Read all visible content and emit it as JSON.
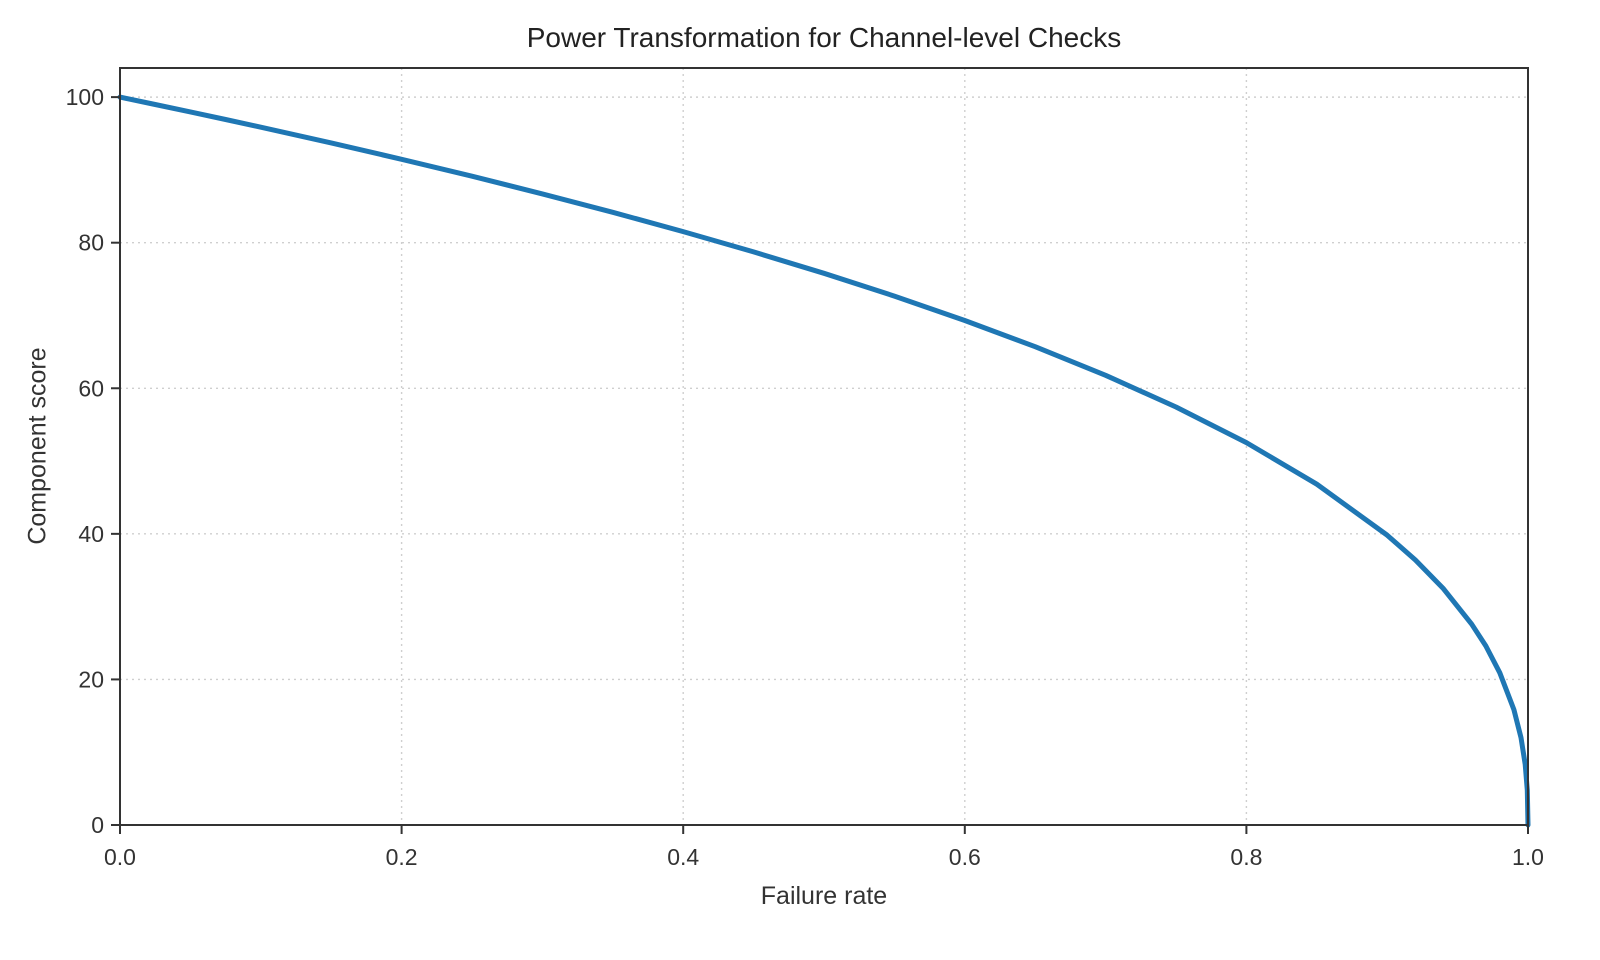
{
  "chart_data": {
    "type": "line",
    "title": "Power Transformation for Channel-level Checks",
    "xlabel": "Failure rate",
    "ylabel": "Component score",
    "xlim": [
      0.0,
      1.0
    ],
    "ylim": [
      0,
      104
    ],
    "grid": true,
    "legend": "none",
    "line_color": "#1f77b4",
    "line_width": 5,
    "x_ticks": {
      "values": [
        0.0,
        0.2,
        0.4,
        0.6,
        0.8,
        1.0
      ],
      "labels": [
        "0.0",
        "0.2",
        "0.4",
        "0.6",
        "0.8",
        "1.0"
      ]
    },
    "y_ticks": {
      "values": [
        0,
        20,
        40,
        60,
        80,
        100
      ],
      "labels": [
        "0",
        "20",
        "40",
        "60",
        "80",
        "100"
      ]
    },
    "series": [
      {
        "name": "Component score",
        "x": [
          0,
          0.025,
          0.05,
          0.075,
          0.1,
          0.15,
          0.2,
          0.25,
          0.3,
          0.35,
          0.4,
          0.45,
          0.5,
          0.55,
          0.6,
          0.65,
          0.7,
          0.75,
          0.8,
          0.85,
          0.9,
          0.92,
          0.94,
          0.96,
          0.97,
          0.98,
          0.99,
          0.995,
          0.998,
          0.9995,
          1.0
        ],
        "y": [
          100,
          98.99,
          97.97,
          96.93,
          95.87,
          93.71,
          91.46,
          89.13,
          86.7,
          84.17,
          81.52,
          78.73,
          75.79,
          72.66,
          69.31,
          65.71,
          61.78,
          57.43,
          52.53,
          46.82,
          39.81,
          36.41,
          32.45,
          27.59,
          24.6,
          20.91,
          15.85,
          12.01,
          8.33,
          4.78,
          0
        ]
      }
    ]
  }
}
